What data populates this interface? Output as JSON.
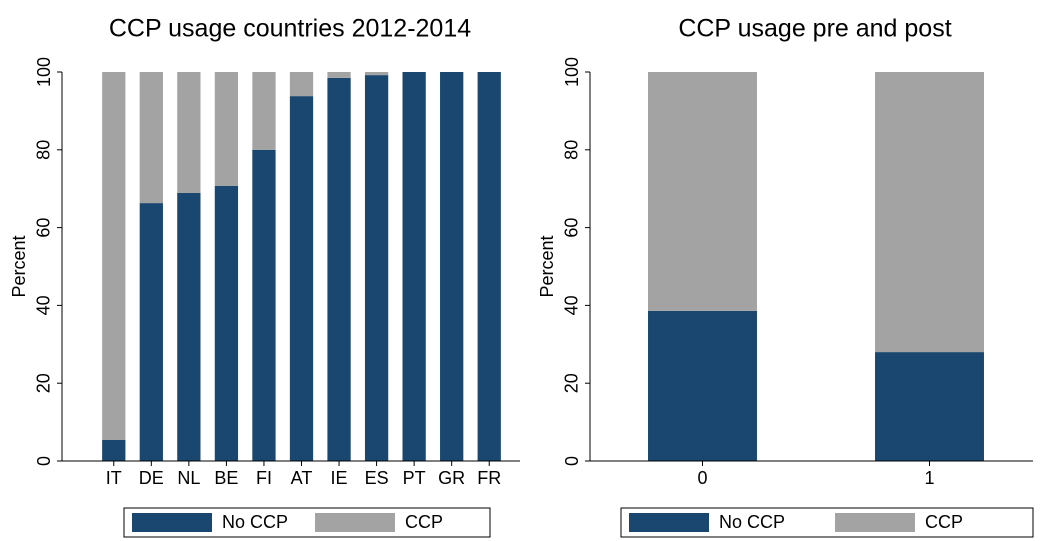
{
  "chart_data": [
    {
      "type": "bar",
      "stacked": true,
      "title": "CCP usage countries 2012-2014",
      "ylabel": "Percent",
      "categories": [
        "IT",
        "DE",
        "NL",
        "BE",
        "FI",
        "AT",
        "IE",
        "ES",
        "PT",
        "GR",
        "FR"
      ],
      "series": [
        {
          "name": "No CCP",
          "color": "#1a476f",
          "values": [
            5.4,
            66.3,
            68.9,
            70.7,
            80,
            93.8,
            98.5,
            99.2,
            100,
            100,
            100
          ]
        },
        {
          "name": "CCP",
          "color": "#a3a3a3",
          "values": [
            94.6,
            33.7,
            31.1,
            29.3,
            20,
            6.2,
            1.5,
            0.8,
            0,
            0,
            0
          ]
        }
      ],
      "ylim": [
        0,
        100
      ],
      "yticks": [
        0,
        20,
        40,
        60,
        80,
        100
      ],
      "legend": "bottom"
    },
    {
      "type": "bar",
      "stacked": true,
      "title": "CCP usage pre and post",
      "ylabel": "Percent",
      "categories": [
        "0",
        "1"
      ],
      "series": [
        {
          "name": "No CCP",
          "color": "#1a476f",
          "values": [
            38.6,
            28
          ]
        },
        {
          "name": "CCP",
          "color": "#a3a3a3",
          "values": [
            61.4,
            72
          ]
        }
      ],
      "ylim": [
        0,
        100
      ],
      "yticks": [
        0,
        20,
        40,
        60,
        80,
        100
      ],
      "legend": "bottom"
    }
  ]
}
